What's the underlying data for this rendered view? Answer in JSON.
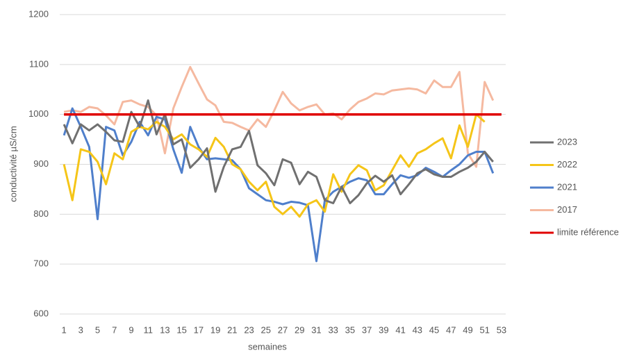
{
  "chart_data": {
    "type": "line",
    "xlabel": "semaines",
    "ylabel": "conductivité µS/cm",
    "categories": [
      1,
      null,
      3,
      null,
      5,
      null,
      7,
      null,
      9,
      null,
      11,
      null,
      13,
      null,
      15,
      null,
      17,
      null,
      19,
      null,
      21,
      null,
      23,
      null,
      25,
      null,
      27,
      null,
      29,
      null,
      31,
      null,
      33,
      null,
      35,
      null,
      37,
      null,
      39,
      null,
      41,
      null,
      43,
      null,
      45,
      null,
      47,
      null,
      49,
      null,
      51,
      null,
      53
    ],
    "ylim": [
      600,
      1200
    ],
    "yticks": [
      600,
      700,
      800,
      900,
      1000,
      1100,
      1200
    ],
    "grid": true,
    "legend": "right",
    "series": [
      {
        "name": "2023",
        "color": "#707070",
        "values": [
          980,
          942,
          980,
          968,
          980,
          965,
          948,
          945,
          1005,
          975,
          1028,
          960,
          1000,
          940,
          950,
          893,
          910,
          932,
          845,
          895,
          930,
          935,
          967,
          898,
          882,
          858,
          910,
          903,
          860,
          885,
          875,
          828,
          822,
          855,
          822,
          838,
          862,
          877,
          865,
          878,
          840,
          860,
          882,
          890,
          880,
          875,
          875,
          885,
          893,
          905,
          925,
          905,
          null
        ]
      },
      {
        "name": "2022",
        "color": "#f5c518",
        "values": [
          900,
          828,
          930,
          925,
          905,
          860,
          922,
          910,
          965,
          975,
          970,
          985,
          975,
          950,
          960,
          940,
          930,
          915,
          953,
          935,
          900,
          890,
          865,
          848,
          865,
          815,
          800,
          815,
          795,
          820,
          828,
          805,
          880,
          845,
          880,
          898,
          888,
          848,
          858,
          888,
          918,
          895,
          922,
          930,
          942,
          952,
          912,
          978,
          935,
          1000,
          985,
          null,
          null
        ]
      },
      {
        "name": "2021",
        "color": "#4f7fcb",
        "values": [
          958,
          1012,
          975,
          935,
          790,
          975,
          968,
          918,
          945,
          985,
          958,
          995,
          990,
          930,
          883,
          975,
          935,
          910,
          912,
          910,
          908,
          890,
          852,
          840,
          828,
          825,
          820,
          825,
          823,
          818,
          706,
          828,
          845,
          855,
          865,
          872,
          868,
          840,
          840,
          860,
          878,
          873,
          878,
          893,
          885,
          875,
          888,
          900,
          918,
          925,
          925,
          882,
          null
        ]
      },
      {
        "name": "2017",
        "color": "#f5b9a0",
        "values": [
          1005,
          1008,
          1005,
          1015,
          1012,
          998,
          980,
          1025,
          1028,
          1020,
          1015,
          998,
          922,
          1012,
          1055,
          1095,
          1062,
          1030,
          1018,
          985,
          983,
          975,
          968,
          990,
          975,
          1008,
          1045,
          1022,
          1008,
          1015,
          1020,
          1000,
          1002,
          990,
          1010,
          1025,
          1032,
          1042,
          1040,
          1048,
          1050,
          1052,
          1050,
          1042,
          1068,
          1055,
          1055,
          1085,
          922,
          895,
          1065,
          1028,
          null
        ]
      },
      {
        "name": "limite référence",
        "color": "#e00000",
        "values": [
          1000,
          1000,
          1000,
          1000,
          1000,
          1000,
          1000,
          1000,
          1000,
          1000,
          1000,
          1000,
          1000,
          1000,
          1000,
          1000,
          1000,
          1000,
          1000,
          1000,
          1000,
          1000,
          1000,
          1000,
          1000,
          1000,
          1000,
          1000,
          1000,
          1000,
          1000,
          1000,
          1000,
          1000,
          1000,
          1000,
          1000,
          1000,
          1000,
          1000,
          1000,
          1000,
          1000,
          1000,
          1000,
          1000,
          1000,
          1000,
          1000,
          1000,
          1000,
          1000,
          1000
        ]
      }
    ]
  }
}
